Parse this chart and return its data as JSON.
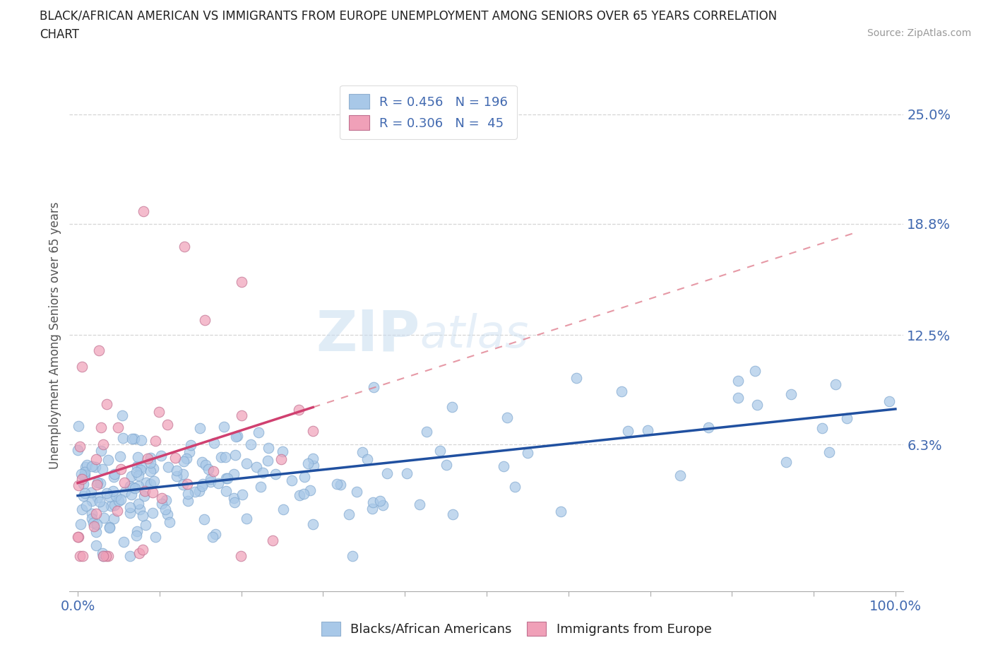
{
  "title_line1": "BLACK/AFRICAN AMERICAN VS IMMIGRANTS FROM EUROPE UNEMPLOYMENT AMONG SENIORS OVER 65 YEARS CORRELATION",
  "title_line2": "CHART",
  "source": "Source: ZipAtlas.com",
  "ylabel": "Unemployment Among Seniors over 65 years",
  "xlim": [
    -1,
    101
  ],
  "ylim": [
    -2,
    27
  ],
  "yticks": [
    6.3,
    12.5,
    18.8,
    25.0
  ],
  "ytick_labels": [
    "6.3%",
    "12.5%",
    "18.8%",
    "25.0%"
  ],
  "xtick_labels": [
    "0.0%",
    "100.0%"
  ],
  "xticks": [
    0,
    100
  ],
  "blue_scatter_color": "#a8c8e8",
  "pink_scatter_color": "#f0a0b8",
  "blue_line_color": "#2050a0",
  "pink_line_color": "#d04070",
  "pink_dashed_color": "#e08090",
  "blue_R": 0.456,
  "blue_N": 196,
  "pink_R": 0.306,
  "pink_N": 45,
  "watermark_zip": "ZIP",
  "watermark_atlas": "atlas",
  "legend_label_blue": "Blacks/African Americans",
  "legend_label_pink": "Immigrants from Europe",
  "background_color": "#ffffff",
  "grid_color": "#cccccc",
  "title_color": "#222222",
  "tick_label_color": "#4169b0",
  "source_color": "#999999",
  "ylabel_color": "#555555"
}
